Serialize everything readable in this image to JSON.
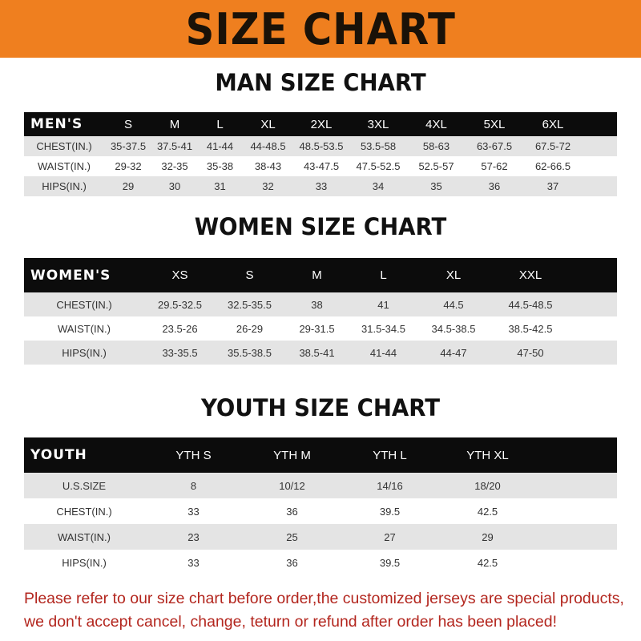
{
  "banner": "SIZE CHART",
  "footer": {
    "line1": "Please refer to our size chart before order,the customized jerseys are special products,",
    "line2": "we don't accept cancel, change, teturn or refund after order has been placed!"
  },
  "colors": {
    "banner": "#ef7f1f",
    "header_row": "#0c0c0c",
    "stripe": "#e4e4e4",
    "notice": "#b3261e"
  },
  "tables": [
    {
      "title": "MAN SIZE CHART",
      "header": [
        "MEN'S",
        "S",
        "M",
        "L",
        "XL",
        "2XL",
        "3XL",
        "4XL",
        "5XL",
        "6XL"
      ],
      "rows": [
        [
          "CHEST(IN.)",
          "35-37.5",
          "37.5-41",
          "41-44",
          "44-48.5",
          "48.5-53.5",
          "53.5-58",
          "58-63",
          "63-67.5",
          "67.5-72"
        ],
        [
          "WAIST(IN.)",
          "29-32",
          "32-35",
          "35-38",
          "38-43",
          "43-47.5",
          "47.5-52.5",
          "52.5-57",
          "57-62",
          "62-66.5"
        ],
        [
          "HIPS(IN.)",
          "29",
          "30",
          "31",
          "32",
          "33",
          "34",
          "35",
          "36",
          "37"
        ]
      ]
    },
    {
      "title": "WOMEN SIZE CHART",
      "header": [
        "WOMEN'S",
        "XS",
        "S",
        "M",
        "L",
        "XL",
        "XXL"
      ],
      "rows": [
        [
          "CHEST(IN.)",
          "29.5-32.5",
          "32.5-35.5",
          "38",
          "41",
          "44.5",
          "44.5-48.5"
        ],
        [
          "WAIST(IN.)",
          "23.5-26",
          "26-29",
          "29-31.5",
          "31.5-34.5",
          "34.5-38.5",
          "38.5-42.5"
        ],
        [
          "HIPS(IN.)",
          "33-35.5",
          "35.5-38.5",
          "38.5-41",
          "41-44",
          "44-47",
          "47-50"
        ]
      ]
    },
    {
      "title": "YOUTH SIZE CHART",
      "header": [
        "YOUTH",
        "YTH S",
        "YTH M",
        "YTH L",
        "YTH XL"
      ],
      "rows": [
        [
          "U.S.SIZE",
          "8",
          "10/12",
          "14/16",
          "18/20"
        ],
        [
          "CHEST(IN.)",
          "33",
          "36",
          "39.5",
          "42.5"
        ],
        [
          "WAIST(IN.)",
          "23",
          "25",
          "27",
          "29"
        ],
        [
          "HIPS(IN.)",
          "33",
          "36",
          "39.5",
          "42.5"
        ]
      ]
    }
  ]
}
